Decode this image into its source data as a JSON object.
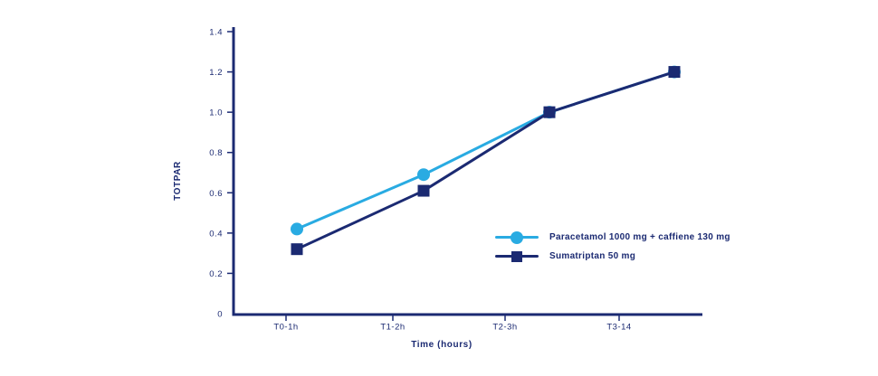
{
  "chart_data": {
    "type": "line",
    "title": "",
    "xlabel": "Time (hours)",
    "ylabel": "TOTPAR",
    "categories": [
      "T0-1h",
      "T1-2h",
      "T2-3h",
      "T3-14"
    ],
    "yticks": [
      "0",
      "0.2",
      "0.4",
      "0.6",
      "0.8",
      "1.0",
      "1.2",
      "1.4"
    ],
    "ylim": [
      0,
      1.4
    ],
    "grid": false,
    "legend_position": "center-right",
    "axis_color": "#1B2A72",
    "background_color": "#FFFFFF",
    "series": [
      {
        "name": "Paracetamol 1000 mg + caffiene 130 mg",
        "values": [
          0.42,
          0.69,
          1.0,
          1.2
        ],
        "color": "#29ABE2",
        "marker": "circle"
      },
      {
        "name": "Sumatriptan 50 mg",
        "values": [
          0.32,
          0.61,
          1.0,
          1.2
        ],
        "color": "#1B2A72",
        "marker": "square"
      }
    ]
  }
}
